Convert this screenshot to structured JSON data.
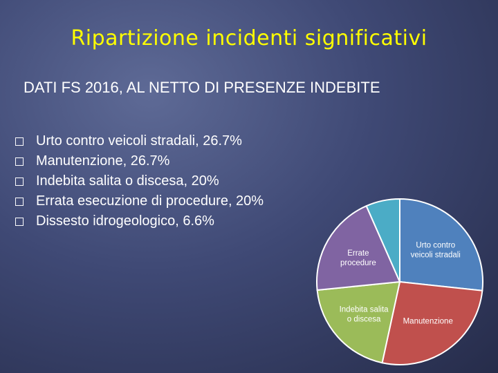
{
  "title": "Ripartizione incidenti significativi",
  "subtitle": "DATI FS 2016, AL NETTO DI PRESENZE INDEBITE",
  "bullets": [
    "Urto contro veicoli stradali, 26.7%",
    "Manutenzione, 26.7%",
    "Indebita salita o discesa, 20%",
    "Errata esecuzione di procedure, 20%",
    "Dissesto idrogeologico, 6.6%"
  ],
  "chart_data": {
    "type": "pie",
    "slices": [
      {
        "label": "Urto contro veicoli stradali",
        "value": 26.7,
        "color": "#4f81bd"
      },
      {
        "label": "Manutenzione",
        "value": 26.7,
        "color": "#c0504d"
      },
      {
        "label": "Indebita salita o discesa",
        "value": 20,
        "color": "#9bbb59"
      },
      {
        "label": "Errate procedure",
        "value": 20,
        "color": "#8064a2"
      },
      {
        "label": "",
        "value": 6.6,
        "color": "#4bacc6"
      }
    ]
  }
}
